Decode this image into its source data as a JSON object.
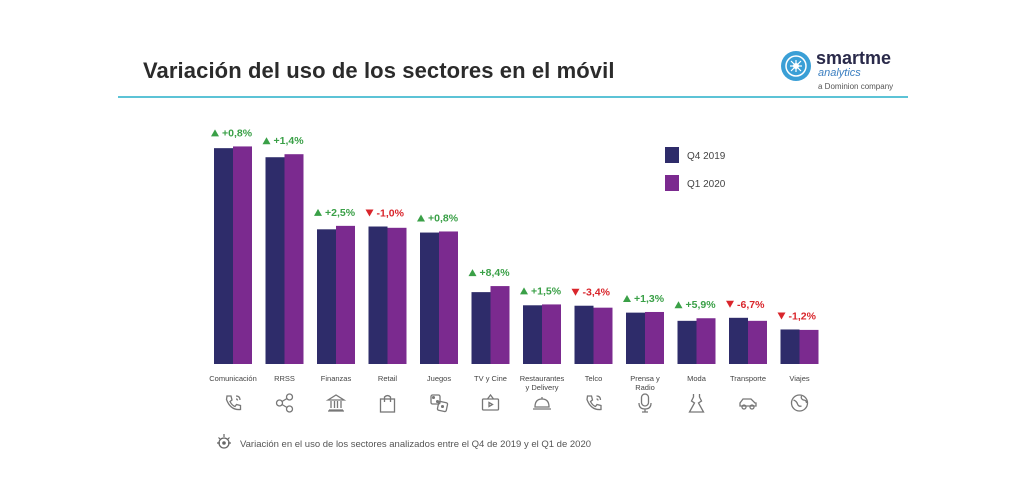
{
  "header": {
    "title": "Variación del uso de los sectores en el móvil"
  },
  "logo": {
    "name": "smartme",
    "sub": "analytics",
    "tagline": "a Dominion company"
  },
  "footnote": "Variación en el uso de los sectores analizados entre el Q4 de 2019 y el Q1 de 2020",
  "colors": {
    "q4": "#2e2c6a",
    "q1": "#7b2a8f",
    "up": "#3aa047",
    "down": "#d9252b",
    "accent": "#5cc3d6"
  },
  "chart_data": {
    "type": "bar",
    "title": "Variación del uso de los sectores en el móvil",
    "categories": [
      "Comunicación",
      "RRSS",
      "Finanzas",
      "Retail",
      "Juegos",
      "TV y Cine",
      "Restaurantes y Delivery",
      "Telco",
      "Prensa y Radio",
      "Moda",
      "Transporte",
      "Viajes"
    ],
    "category_lines": [
      [
        "Comunicación"
      ],
      [
        "RRSS"
      ],
      [
        "Finanzas"
      ],
      [
        "Retail"
      ],
      [
        "Juegos"
      ],
      [
        "TV y Cine"
      ],
      [
        "Restaurantes",
        "y Delivery"
      ],
      [
        "Telco"
      ],
      [
        "Prensa y",
        "Radio"
      ],
      [
        "Moda"
      ],
      [
        "Transporte"
      ],
      [
        "Viajes"
      ]
    ],
    "series": [
      {
        "name": "Q4 2019",
        "values": [
          100,
          95.8,
          62.4,
          63.7,
          60.9,
          33.3,
          27.2,
          27.0,
          23.8,
          20.0,
          21.4,
          16.0
        ]
      },
      {
        "name": "Q1 2020",
        "values": [
          100.8,
          97.2,
          64.0,
          63.1,
          61.4,
          36.1,
          27.6,
          26.1,
          24.1,
          21.2,
          20.0,
          15.8
        ]
      }
    ],
    "changes": [
      {
        "dir": "up",
        "label": "+0,8%"
      },
      {
        "dir": "up",
        "label": "+1,4%"
      },
      {
        "dir": "up",
        "label": "+2,5%"
      },
      {
        "dir": "down",
        "label": "-1,0%"
      },
      {
        "dir": "up",
        "label": "+0,8%"
      },
      {
        "dir": "up",
        "label": "+8,4%"
      },
      {
        "dir": "up",
        "label": "+1,5%"
      },
      {
        "dir": "down",
        "label": "-3,4%"
      },
      {
        "dir": "up",
        "label": "+1,3%"
      },
      {
        "dir": "up",
        "label": "+5,9%"
      },
      {
        "dir": "down",
        "label": "-6,7%"
      },
      {
        "dir": "down",
        "label": "-1,2%"
      }
    ],
    "icons": [
      "phone-icon",
      "share-icon",
      "bank-icon",
      "shopping-bag-icon",
      "dice-icon",
      "tv-icon",
      "cloche-icon",
      "phone-icon",
      "microphone-icon",
      "dress-icon",
      "car-icon",
      "globe-icon"
    ],
    "ylim": [
      0,
      101
    ],
    "grid": false,
    "legend_position": "top-right"
  }
}
